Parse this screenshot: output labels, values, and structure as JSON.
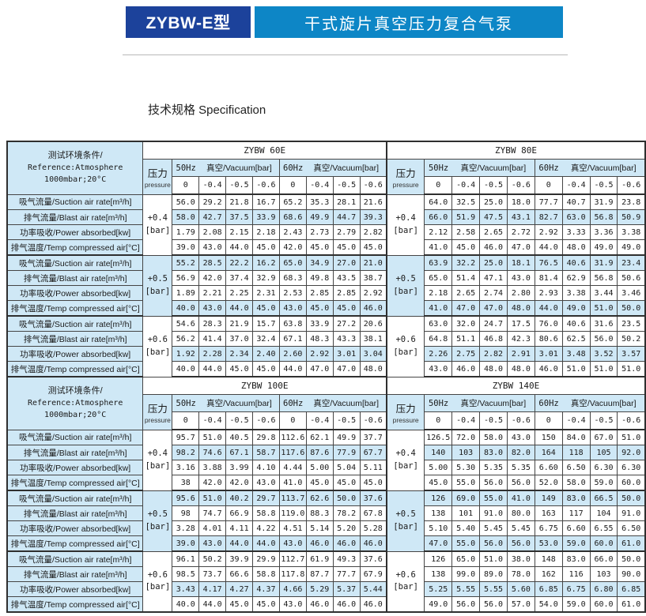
{
  "banner": {
    "model_box": "ZYBW-E型",
    "title_box": "干式旋片真空压力复合气泵"
  },
  "page_title": "技术规格 Specification",
  "colors": {
    "navy_box": "#1c429b",
    "blue_box": "#0d86c6",
    "cell_blue": "#cfe8f6",
    "border": "#454545"
  },
  "table": {
    "env": {
      "line1": "测试环境条件/",
      "line2": "Reference:Atmosphere",
      "line3": "1000mbar;20°C"
    },
    "pressure_zh": "压力",
    "pressure_en": "pressure",
    "freq_blocks": [
      {
        "freq": "50Hz",
        "vacuum": "真空/Vacuum[bar]"
      },
      {
        "freq": "60Hz",
        "vacuum": "真空/Vacuum[bar]"
      }
    ],
    "sub_values": [
      "0",
      "-0.4",
      "-0.5",
      "-0.6",
      "0",
      "-0.4",
      "-0.5",
      "-0.6"
    ],
    "row_labels": [
      "吸气流量/Suction air rate[m³/h]",
      "排气流量/Blast air rate[m³/h]",
      "功率吸收/Power absorbed[kw]",
      "排气温度/Temp compressed air[°C]"
    ],
    "groups": [
      "+0.4",
      "+0.5",
      "+0.6"
    ],
    "bar_unit": "[bar]",
    "blue_row_indexes": [
      1,
      4,
      7,
      10
    ],
    "bands": [
      {
        "left_model": "ZYBW 60E",
        "right_model": "ZYBW 80E",
        "left": [
          [
            "56.0",
            "29.2",
            "21.8",
            "16.7",
            "65.2",
            "35.3",
            "28.1",
            "21.6"
          ],
          [
            "58.0",
            "42.7",
            "37.5",
            "33.9",
            "68.6",
            "49.9",
            "44.7",
            "39.3"
          ],
          [
            "1.79",
            "2.08",
            "2.15",
            "2.18",
            "2.43",
            "2.73",
            "2.79",
            "2.82"
          ],
          [
            "39.0",
            "43.0",
            "44.0",
            "45.0",
            "42.0",
            "45.0",
            "45.0",
            "45.0"
          ],
          [
            "55.2",
            "28.5",
            "22.2",
            "16.2",
            "65.0",
            "34.9",
            "27.0",
            "21.0"
          ],
          [
            "56.9",
            "42.0",
            "37.4",
            "32.9",
            "68.3",
            "49.8",
            "43.5",
            "38.7"
          ],
          [
            "1.89",
            "2.21",
            "2.25",
            "2.31",
            "2.53",
            "2.85",
            "2.85",
            "2.92"
          ],
          [
            "40.0",
            "43.0",
            "44.0",
            "45.0",
            "43.0",
            "45.0",
            "45.0",
            "46.0"
          ],
          [
            "54.6",
            "28.3",
            "21.9",
            "15.7",
            "63.8",
            "33.9",
            "27.2",
            "20.6"
          ],
          [
            "56.2",
            "41.4",
            "37.0",
            "32.4",
            "67.1",
            "48.3",
            "43.3",
            "38.1"
          ],
          [
            "1.92",
            "2.28",
            "2.34",
            "2.40",
            "2.60",
            "2.92",
            "3.01",
            "3.04"
          ],
          [
            "40.0",
            "44.0",
            "45.0",
            "45.0",
            "44.0",
            "47.0",
            "47.0",
            "48.0"
          ]
        ],
        "right": [
          [
            "64.0",
            "32.5",
            "25.0",
            "18.0",
            "77.7",
            "40.7",
            "31.9",
            "23.8"
          ],
          [
            "66.0",
            "51.9",
            "47.5",
            "43.1",
            "82.7",
            "63.0",
            "56.8",
            "50.9"
          ],
          [
            "2.12",
            "2.58",
            "2.65",
            "2.72",
            "2.92",
            "3.33",
            "3.36",
            "3.38"
          ],
          [
            "41.0",
            "45.0",
            "46.0",
            "47.0",
            "44.0",
            "48.0",
            "49.0",
            "49.0"
          ],
          [
            "63.9",
            "32.2",
            "25.0",
            "18.1",
            "76.5",
            "40.6",
            "31.9",
            "23.4"
          ],
          [
            "65.0",
            "51.4",
            "47.1",
            "43.0",
            "81.4",
            "62.9",
            "56.8",
            "50.6"
          ],
          [
            "2.18",
            "2.65",
            "2.74",
            "2.80",
            "2.93",
            "3.38",
            "3.44",
            "3.46"
          ],
          [
            "41.0",
            "47.0",
            "47.0",
            "48.0",
            "44.0",
            "49.0",
            "51.0",
            "50.0"
          ],
          [
            "63.0",
            "32.0",
            "24.7",
            "17.5",
            "76.0",
            "40.6",
            "31.6",
            "23.5"
          ],
          [
            "64.8",
            "51.1",
            "46.8",
            "42.3",
            "80.6",
            "62.5",
            "56.0",
            "50.2"
          ],
          [
            "2.26",
            "2.75",
            "2.82",
            "2.91",
            "3.01",
            "3.48",
            "3.52",
            "3.57"
          ],
          [
            "43.0",
            "46.0",
            "48.0",
            "48.0",
            "46.0",
            "51.0",
            "51.0",
            "51.0"
          ]
        ]
      },
      {
        "left_model": "ZYBW 100E",
        "right_model": "ZYBW 140E",
        "left": [
          [
            "95.7",
            "51.0",
            "40.5",
            "29.8",
            "112.6",
            "62.1",
            "49.9",
            "37.7"
          ],
          [
            "98.2",
            "74.6",
            "67.1",
            "58.7",
            "117.6",
            "87.6",
            "77.9",
            "67.7"
          ],
          [
            "3.16",
            "3.88",
            "3.99",
            "4.10",
            "4.44",
            "5.00",
            "5.04",
            "5.11"
          ],
          [
            "38",
            "42.0",
            "42.0",
            "43.0",
            "41.0",
            "45.0",
            "45.0",
            "45.0"
          ],
          [
            "95.6",
            "51.0",
            "40.2",
            "29.7",
            "113.7",
            "62.6",
            "50.0",
            "37.6"
          ],
          [
            "98",
            "74.7",
            "66.9",
            "58.8",
            "119.0",
            "88.3",
            "78.2",
            "67.8"
          ],
          [
            "3.28",
            "4.01",
            "4.11",
            "4.22",
            "4.51",
            "5.14",
            "5.20",
            "5.28"
          ],
          [
            "39.0",
            "43.0",
            "44.0",
            "44.0",
            "43.0",
            "46.0",
            "46.0",
            "46.0"
          ],
          [
            "96.1",
            "50.2",
            "39.9",
            "29.9",
            "112.7",
            "61.9",
            "49.3",
            "37.6"
          ],
          [
            "98.5",
            "73.7",
            "66.6",
            "58.8",
            "117.8",
            "87.7",
            "77.7",
            "67.9"
          ],
          [
            "3.43",
            "4.17",
            "4.27",
            "4.37",
            "4.66",
            "5.29",
            "5.37",
            "5.44"
          ],
          [
            "40.0",
            "44.0",
            "45.0",
            "45.0",
            "43.0",
            "46.0",
            "46.0",
            "46.0"
          ]
        ],
        "right": [
          [
            "126.5",
            "72.0",
            "58.0",
            "43.0",
            "150",
            "84.0",
            "67.0",
            "51.0"
          ],
          [
            "140",
            "103",
            "83.0",
            "82.0",
            "164",
            "118",
            "105",
            "92.0"
          ],
          [
            "5.00",
            "5.30",
            "5.35",
            "5.35",
            "6.60",
            "6.50",
            "6.30",
            "6.30"
          ],
          [
            "45.0",
            "55.0",
            "56.0",
            "56.0",
            "52.0",
            "58.0",
            "59.0",
            "60.0"
          ],
          [
            "126",
            "69.0",
            "55.0",
            "41.0",
            "149",
            "83.0",
            "66.5",
            "50.0"
          ],
          [
            "138",
            "101",
            "91.0",
            "80.0",
            "163",
            "117",
            "104",
            "91.0"
          ],
          [
            "5.10",
            "5.40",
            "5.45",
            "5.45",
            "6.75",
            "6.60",
            "6.55",
            "6.50"
          ],
          [
            "47.0",
            "55.0",
            "56.0",
            "56.0",
            "53.0",
            "59.0",
            "60.0",
            "61.0"
          ],
          [
            "126",
            "65.0",
            "51.0",
            "38.0",
            "148",
            "83.0",
            "66.0",
            "50.0"
          ],
          [
            "138",
            "99.0",
            "89.0",
            "78.0",
            "162",
            "116",
            "103",
            "90.0"
          ],
          [
            "5.25",
            "5.55",
            "5.55",
            "5.60",
            "6.85",
            "6.75",
            "6.80",
            "6.85"
          ],
          [
            "49.0",
            "56.0",
            "56.0",
            "57.0",
            "54.0",
            "59.0",
            "60.0",
            "61.0"
          ]
        ]
      }
    ]
  }
}
